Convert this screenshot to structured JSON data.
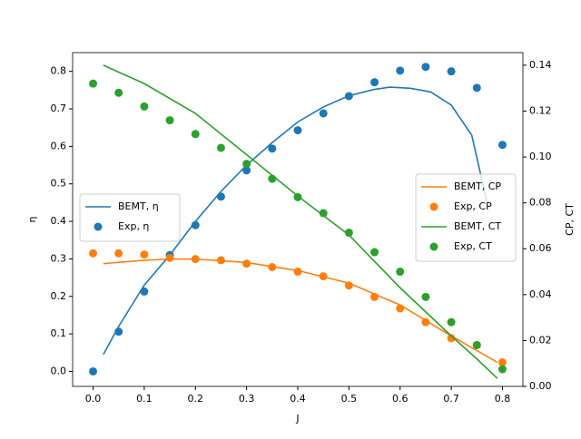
{
  "chart_data": {
    "type": "line",
    "xlabel": "J",
    "ylabel": "η",
    "y2label": "CP, CT",
    "xlim": [
      -0.04,
      0.84
    ],
    "ylim": [
      -0.04,
      0.85
    ],
    "y2lim": [
      0,
      0.1455
    ],
    "xticks": [
      {
        "value": 0,
        "label": "0.0"
      },
      {
        "value": 0.1,
        "label": "0.1"
      },
      {
        "value": 0.2,
        "label": "0.2"
      },
      {
        "value": 0.3,
        "label": "0.3"
      },
      {
        "value": 0.4,
        "label": "0.4"
      },
      {
        "value": 0.5,
        "label": "0.5"
      },
      {
        "value": 0.6,
        "label": "0.6"
      },
      {
        "value": 0.7,
        "label": "0.7"
      },
      {
        "value": 0.8,
        "label": "0.8"
      }
    ],
    "yticks": [
      {
        "value": 0,
        "label": "0.0"
      },
      {
        "value": 0.1,
        "label": "0.1"
      },
      {
        "value": 0.2,
        "label": "0.2"
      },
      {
        "value": 0.3,
        "label": "0.3"
      },
      {
        "value": 0.4,
        "label": "0.4"
      },
      {
        "value": 0.5,
        "label": "0.5"
      },
      {
        "value": 0.6,
        "label": "0.6"
      },
      {
        "value": 0.7,
        "label": "0.7"
      },
      {
        "value": 0.8,
        "label": "0.8"
      }
    ],
    "y2ticks": [
      {
        "value": 0,
        "label": "0.00"
      },
      {
        "value": 0.02,
        "label": "0.02"
      },
      {
        "value": 0.04,
        "label": "0.04"
      },
      {
        "value": 0.06,
        "label": "0.06"
      },
      {
        "value": 0.08,
        "label": "0.08"
      },
      {
        "value": 0.1,
        "label": "0.10"
      },
      {
        "value": 0.12,
        "label": "0.12"
      },
      {
        "value": 0.14,
        "label": "0.14"
      }
    ],
    "series": [
      {
        "name": "BEMT, η",
        "color": "#1f77b4",
        "mode": "line",
        "axis": "y",
        "legend": "center left",
        "x": [
          0.02,
          0.05,
          0.1,
          0.15,
          0.2,
          0.25,
          0.3,
          0.35,
          0.4,
          0.45,
          0.5,
          0.55,
          0.58,
          0.62,
          0.66,
          0.7,
          0.74,
          0.77
        ],
        "values": [
          0.045,
          0.12,
          0.23,
          0.31,
          0.4,
          0.48,
          0.55,
          0.61,
          0.665,
          0.705,
          0.735,
          0.752,
          0.758,
          0.755,
          0.745,
          0.71,
          0.63,
          0.45
        ]
      },
      {
        "name": "Exp, η",
        "color": "#1f77b4",
        "mode": "scatter",
        "axis": "y",
        "legend": "center left",
        "x": [
          0,
          0.05,
          0.1,
          0.15,
          0.2,
          0.25,
          0.3,
          0.35,
          0.4,
          0.45,
          0.5,
          0.55,
          0.6,
          0.65,
          0.7,
          0.75,
          0.8
        ],
        "values": [
          0,
          0.106,
          0.213,
          0.31,
          0.39,
          0.466,
          0.536,
          0.594,
          0.643,
          0.688,
          0.734,
          0.771,
          0.802,
          0.812,
          0.8,
          0.756,
          0.604
        ]
      },
      {
        "name": "BEMT, CP",
        "color": "#ff7f0e",
        "mode": "line",
        "axis": "y2",
        "legend": "center right",
        "x": [
          0.02,
          0.1,
          0.15,
          0.2,
          0.3,
          0.4,
          0.5,
          0.6,
          0.7,
          0.79
        ],
        "values": [
          0.0535,
          0.055,
          0.0555,
          0.0555,
          0.054,
          0.0505,
          0.045,
          0.0355,
          0.022,
          0.0105
        ]
      },
      {
        "name": "Exp, CP",
        "color": "#ff7f0e",
        "mode": "scatter",
        "axis": "y2",
        "legend": "center right",
        "x": [
          0,
          0.05,
          0.1,
          0.15,
          0.2,
          0.25,
          0.3,
          0.35,
          0.4,
          0.45,
          0.5,
          0.55,
          0.6,
          0.65,
          0.7,
          0.75,
          0.8
        ],
        "values": [
          0.058,
          0.058,
          0.0575,
          0.056,
          0.0555,
          0.055,
          0.0535,
          0.052,
          0.05,
          0.048,
          0.044,
          0.039,
          0.034,
          0.028,
          0.021,
          0.018,
          0.0105
        ]
      },
      {
        "name": "BEMT, CT",
        "color": "#2ca02c",
        "mode": "line",
        "axis": "y2",
        "legend": "center right",
        "x": [
          0.02,
          0.1,
          0.2,
          0.3,
          0.4,
          0.5,
          0.6,
          0.7,
          0.75,
          0.79
        ],
        "values": [
          0.14,
          0.132,
          0.119,
          0.101,
          0.083,
          0.066,
          0.043,
          0.022,
          0.012,
          0.0035
        ]
      },
      {
        "name": "Exp, CT",
        "color": "#2ca02c",
        "mode": "scatter",
        "axis": "y2",
        "legend": "center right",
        "x": [
          0,
          0.05,
          0.1,
          0.15,
          0.2,
          0.25,
          0.3,
          0.35,
          0.4,
          0.45,
          0.5,
          0.55,
          0.6,
          0.65,
          0.7,
          0.75,
          0.8
        ],
        "values": [
          0.132,
          0.128,
          0.122,
          0.116,
          0.11,
          0.104,
          0.097,
          0.0905,
          0.0825,
          0.0755,
          0.067,
          0.0585,
          0.05,
          0.039,
          0.028,
          0.018,
          0.0075
        ]
      }
    ]
  }
}
